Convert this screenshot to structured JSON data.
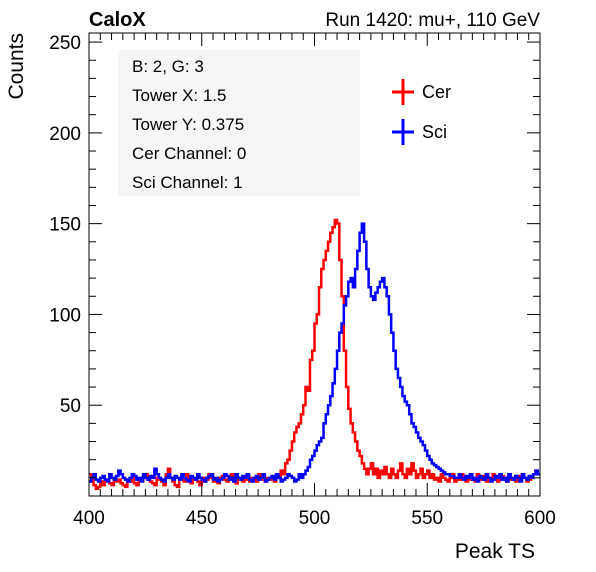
{
  "header": {
    "left": "CaloX",
    "right": "Run 1420: mu+, 110 GeV"
  },
  "info_box": {
    "lines": [
      "B: 2, G: 3",
      "Tower X: 1.5",
      "Tower Y: 0.375",
      "Cer Channel: 0",
      "Sci Channel: 1"
    ]
  },
  "chart_data": {
    "type": "line",
    "style": "histogram-step",
    "xlabel": "Peak TS",
    "ylabel": "Counts",
    "xlim": [
      400,
      600
    ],
    "ylim": [
      0,
      255
    ],
    "x_ticks": [
      400,
      450,
      500,
      550,
      600
    ],
    "y_ticks": [
      50,
      100,
      150,
      200,
      250
    ],
    "grid": false,
    "legend_position": "top-right",
    "series": [
      {
        "name": "Cer",
        "color": "#ff0000",
        "x_start": 400,
        "bin_width": 1,
        "values": [
          12,
          10,
          6,
          4,
          5,
          8,
          6,
          9,
          8,
          7,
          6,
          10,
          8,
          9,
          7,
          6,
          5,
          9,
          8,
          10,
          7,
          6,
          9,
          8,
          10,
          12,
          9,
          8,
          7,
          6,
          10,
          9,
          8,
          6,
          12,
          15,
          10,
          8,
          6,
          5,
          9,
          10,
          8,
          12,
          9,
          7,
          10,
          9,
          8,
          6,
          10,
          8,
          9,
          12,
          10,
          8,
          9,
          7,
          10,
          11,
          9,
          8,
          10,
          12,
          8,
          7,
          9,
          10,
          8,
          11,
          9,
          8,
          10,
          9,
          8,
          12,
          10,
          9,
          8,
          10,
          9,
          10,
          8,
          12,
          10,
          14,
          12,
          18,
          20,
          25,
          30,
          35,
          38,
          40,
          45,
          50,
          60,
          58,
          75,
          80,
          95,
          100,
          115,
          125,
          130,
          135,
          140,
          145,
          148,
          152,
          150,
          130,
          110,
          80,
          60,
          48,
          40,
          35,
          30,
          25,
          22,
          18,
          15,
          12,
          15,
          18,
          12,
          15,
          10,
          14,
          12,
          16,
          12,
          10,
          15,
          12,
          10,
          14,
          18,
          12,
          10,
          15,
          12,
          18,
          14,
          10,
          12,
          15,
          10,
          12,
          14,
          10,
          12,
          9,
          10,
          8,
          12,
          10,
          9,
          8,
          10,
          12,
          8,
          10,
          9,
          12,
          10,
          8,
          11,
          9,
          10,
          8,
          12,
          10,
          9,
          11,
          8,
          10,
          9,
          12,
          10,
          8,
          9,
          11,
          10,
          8,
          12,
          9,
          10,
          8,
          11,
          9,
          12,
          10,
          8,
          9,
          10,
          12,
          14,
          12
        ]
      },
      {
        "name": "Sci",
        "color": "#0000ff",
        "x_start": 400,
        "bin_width": 1,
        "values": [
          8,
          10,
          12,
          9,
          8,
          10,
          11,
          9,
          8,
          12,
          10,
          9,
          11,
          14,
          12,
          10,
          9,
          8,
          10,
          12,
          11,
          9,
          10,
          8,
          12,
          10,
          9,
          11,
          10,
          15,
          12,
          10,
          9,
          8,
          10,
          12,
          10,
          9,
          11,
          10,
          9,
          12,
          10,
          9,
          8,
          11,
          10,
          9,
          12,
          10,
          9,
          8,
          10,
          11,
          12,
          9,
          10,
          8,
          9,
          10,
          12,
          11,
          9,
          10,
          8,
          12,
          10,
          9,
          11,
          10,
          12,
          9,
          8,
          10,
          11,
          9,
          10,
          12,
          8,
          9,
          10,
          11,
          9,
          12,
          10,
          8,
          9,
          10,
          12,
          11,
          10,
          8,
          9,
          12,
          10,
          12,
          14,
          16,
          20,
          22,
          25,
          28,
          30,
          32,
          40,
          45,
          50,
          55,
          62,
          70,
          80,
          90,
          95,
          105,
          110,
          118,
          120,
          115,
          125,
          135,
          145,
          150,
          140,
          125,
          115,
          110,
          108,
          112,
          115,
          118,
          120,
          115,
          110,
          100,
          90,
          80,
          70,
          65,
          60,
          55,
          52,
          50,
          45,
          40,
          38,
          35,
          32,
          30,
          28,
          25,
          22,
          20,
          18,
          17,
          16,
          15,
          14,
          13,
          12,
          12,
          11,
          11,
          10,
          10,
          12,
          10,
          9,
          11,
          10,
          12,
          9,
          10,
          8,
          11,
          10,
          9,
          12,
          10,
          8,
          9,
          11,
          10,
          12,
          9,
          10,
          8,
          12,
          10,
          9,
          11,
          10,
          8,
          12,
          10,
          9,
          11,
          10,
          12,
          14,
          12
        ]
      }
    ]
  }
}
